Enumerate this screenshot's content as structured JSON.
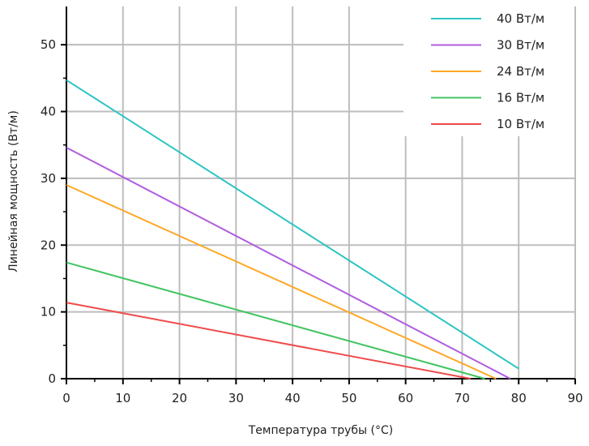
{
  "chart_data": {
    "type": "line",
    "xlabel": "Температура трубы (°C)",
    "ylabel": "Линейная мощность (Вт/м)",
    "xlim": [
      0,
      90
    ],
    "ylim": [
      0,
      55
    ],
    "xticks": [
      "0",
      "10",
      "20",
      "30",
      "40",
      "50",
      "60",
      "70",
      "80",
      "90"
    ],
    "yticks": [
      "0",
      "10",
      "20",
      "30",
      "40",
      "50"
    ],
    "grid": true,
    "legend_position": "top-right",
    "series": [
      {
        "name": "40 Вт/м",
        "color": "#2ec4c4",
        "points": [
          [
            0,
            44.7
          ],
          [
            80,
            1.5
          ]
        ]
      },
      {
        "name": "30 Вт/м",
        "color": "#b05ce0",
        "points": [
          [
            0,
            34.6
          ],
          [
            78.5,
            0
          ]
        ]
      },
      {
        "name": "24 Вт/м",
        "color": "#ffa726",
        "points": [
          [
            0,
            29.0
          ],
          [
            76,
            0
          ]
        ]
      },
      {
        "name": "16 Вт/м",
        "color": "#43c463",
        "points": [
          [
            0,
            17.4
          ],
          [
            74,
            0
          ]
        ]
      },
      {
        "name": "10 Вт/м",
        "color": "#f04b4b",
        "points": [
          [
            0,
            11.4
          ],
          [
            71.5,
            0
          ]
        ]
      }
    ]
  }
}
